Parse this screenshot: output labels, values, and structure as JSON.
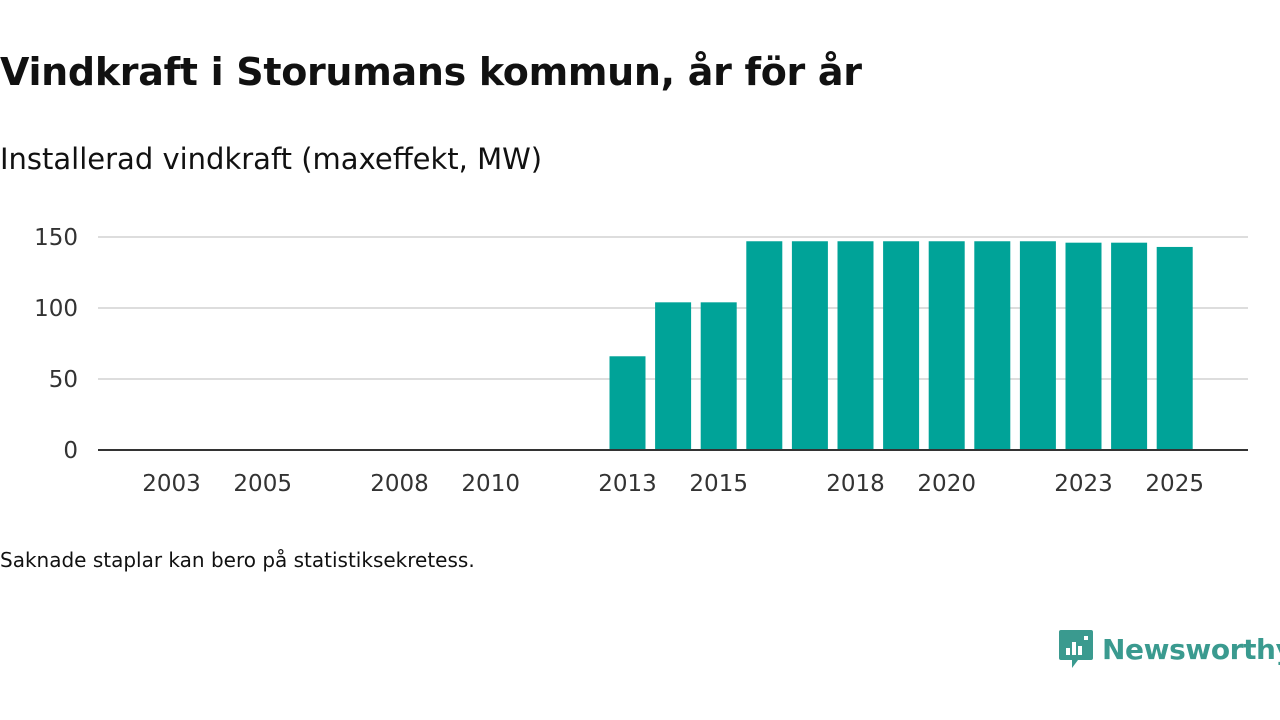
{
  "header": {
    "title": "Vindkraft i Storumans kommun, år för år",
    "subtitle": "Installerad vindkraft (maxeffekt, MW)"
  },
  "footer": {
    "note": "Saknade staplar kan bero på statistiksekretess.",
    "brand": "Newsworthy"
  },
  "colors": {
    "bar": "#00a398",
    "grid": "#dddddd",
    "axis": "#333333",
    "text": "#333333",
    "brand": "#3a9a8f"
  },
  "chart_data": {
    "type": "bar",
    "title": "Vindkraft i Storumans kommun, år för år",
    "subtitle": "Installerad vindkraft (maxeffekt, MW)",
    "xlabel": "",
    "ylabel": "Installerad vindkraft (maxeffekt, MW)",
    "ylim": [
      0,
      150
    ],
    "yticks": [
      0,
      50,
      100,
      150
    ],
    "grid": true,
    "categories": [
      "2002",
      "2003",
      "2004",
      "2005",
      "2006",
      "2007",
      "2008",
      "2009",
      "2010",
      "2011",
      "2012",
      "2013",
      "2014",
      "2015",
      "2016",
      "2017",
      "2018",
      "2019",
      "2020",
      "2021",
      "2022",
      "2023",
      "2024",
      "2025"
    ],
    "xtick_labels": [
      "2003",
      "2005",
      "2008",
      "2010",
      "2013",
      "2015",
      "2018",
      "2020",
      "2023",
      "2025"
    ],
    "values": [
      null,
      null,
      null,
      null,
      null,
      null,
      null,
      null,
      null,
      null,
      null,
      66,
      104,
      104,
      147,
      147,
      147,
      147,
      147,
      147,
      147,
      146,
      146,
      143
    ]
  }
}
